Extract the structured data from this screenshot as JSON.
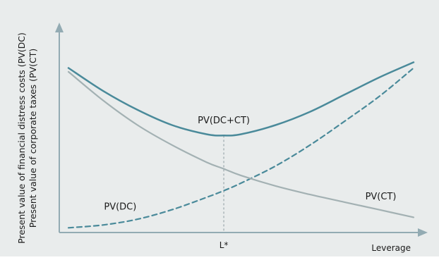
{
  "colors": {
    "background": "#e9ecec",
    "axis": "#93abb3",
    "combined": "#4a8a9a",
    "corporate_taxes": "#a3b1b3",
    "distress_costs": "#4a8a9a",
    "guide": "#8a9a9e"
  },
  "chart_data": {
    "type": "line",
    "title": "",
    "xlabel": "Leverage",
    "ylabel_lines": [
      "Present value of financial distress costs (PV(DC)",
      "Present value of corporate taxes (PV(CT)"
    ],
    "xlim": [
      0,
      10
    ],
    "ylim": [
      0,
      10
    ],
    "grid": false,
    "x_ticks": [
      {
        "value": 4.5,
        "label": "L*"
      }
    ],
    "series": [
      {
        "name": "PV(DC+CT)",
        "style": "solid",
        "x": [
          0,
          1,
          2,
          3,
          4,
          4.5,
          5,
          6,
          7,
          8,
          9,
          10
        ],
        "y": [
          8.5,
          7.3,
          6.3,
          5.5,
          5.02,
          4.95,
          5.02,
          5.5,
          6.2,
          7.1,
          8.0,
          8.8
        ]
      },
      {
        "name": "PV(CT)",
        "style": "solid",
        "x": [
          0,
          1,
          2,
          3,
          4,
          4.5,
          5,
          6,
          7,
          8,
          9,
          10
        ],
        "y": [
          8.3,
          6.8,
          5.5,
          4.45,
          3.55,
          3.2,
          2.85,
          2.3,
          1.85,
          1.45,
          1.05,
          0.65
        ]
      },
      {
        "name": "PV(DC)",
        "style": "dashed",
        "x": [
          0,
          1,
          2,
          3,
          4,
          4.5,
          5,
          6,
          7,
          8,
          9,
          10
        ],
        "y": [
          0.1,
          0.25,
          0.55,
          1.05,
          1.7,
          2.05,
          2.45,
          3.35,
          4.45,
          5.7,
          7.0,
          8.5
        ]
      }
    ],
    "annotations": [
      {
        "text": "PV(DC+CT)",
        "series": "PV(DC+CT)",
        "x": 4.5,
        "y": 5.6
      },
      {
        "text": "PV(CT)",
        "series": "PV(CT)",
        "x": 9.05,
        "y": 1.6
      },
      {
        "text": "PV(DC)",
        "series": "PV(DC)",
        "x": 1.5,
        "y": 1.05
      }
    ]
  }
}
